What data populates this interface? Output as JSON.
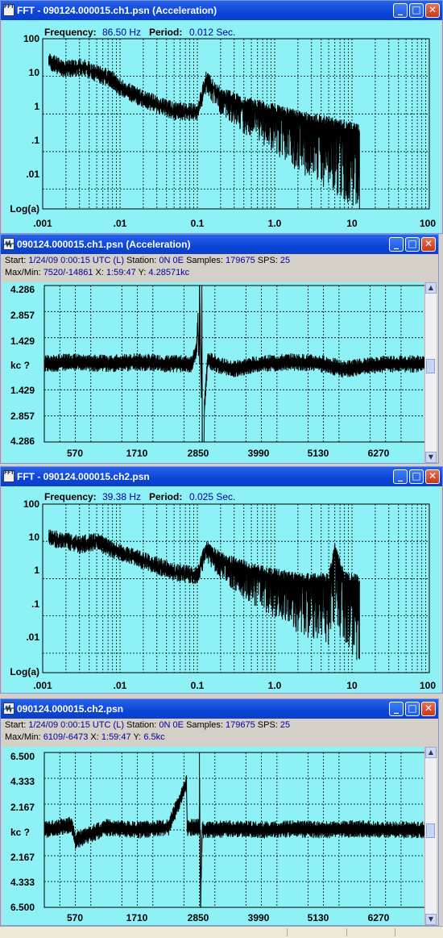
{
  "windows": [
    {
      "id": "fft1",
      "title": "FFT - 090124.000015.ch1.psn (Acceleration)",
      "icon": "fft-icon",
      "icon_text": "FFT",
      "frequency_label": "Frequency:",
      "frequency": "86.50 Hz",
      "period_label": "Period:",
      "period": "0.012 Sec."
    },
    {
      "id": "wave1",
      "title": "090124.000015.ch1.psn (Acceleration)",
      "icon": "waveform-icon",
      "start_label": "Start:",
      "start": "1/24/09  0:00:15 UTC (L)",
      "station_label": "Station:",
      "station": "0N 0E",
      "samples_label": "Samples:",
      "samples": "179675",
      "sps_label": "SPS:",
      "sps": "25",
      "maxmin_label": "Max/Min:",
      "maxmin": "7520/-14861",
      "x_label": "X:",
      "x": "1:59:47",
      "y_label": "Y:",
      "y": "4.28571kc",
      "y_ticks": [
        "4.286",
        "2.857",
        "1.429",
        "kc   ?",
        "1.429",
        "2.857",
        "4.286"
      ]
    },
    {
      "id": "fft2",
      "title": "FFT - 090124.000015.ch2.psn",
      "icon": "fft-icon",
      "icon_text": "FFT",
      "frequency_label": "Frequency:",
      "frequency": "39.38 Hz",
      "period_label": "Period:",
      "period": "0.025 Sec."
    },
    {
      "id": "wave2",
      "title": "090124.000015.ch2.psn",
      "icon": "waveform-icon",
      "start_label": "Start:",
      "start": "1/24/09  0:00:15 UTC (L)",
      "station_label": "Station:",
      "station": "0N 0E",
      "samples_label": "Samples:",
      "samples": "179675",
      "sps_label": "SPS:",
      "sps": "25",
      "maxmin_label": "Max/Min:",
      "maxmin": "6109/-6473",
      "x_label": "X:",
      "x": "1:59:47",
      "y_label": "Y:",
      "y": "6.5kc",
      "y_ticks": [
        "6.500",
        "4.333",
        "2.167",
        "kc   ?",
        "2.167",
        "4.333",
        "6.500"
      ]
    }
  ],
  "buttons": {
    "minimize": "_",
    "maximize": "□",
    "close": "✕"
  },
  "fft_axis": {
    "x_ticks": [
      ".001",
      ".01",
      "0.1",
      "1.0",
      "10",
      "100"
    ],
    "y_ticks": [
      "100",
      "10",
      "1",
      ".1",
      ".01",
      "Log(a)"
    ]
  },
  "wave_axis": {
    "x_ticks": [
      "570",
      "1710",
      "2850",
      "3990",
      "5130",
      "6270"
    ]
  },
  "scroll_icons": {
    "up": "▲",
    "down": "▼"
  },
  "colors": {
    "plot_bg": "#8ef1f6",
    "trace": "#000000",
    "grid": "#000000",
    "title_bar": "#0a45d8",
    "info_value": "#0000a0"
  },
  "chart_data": [
    {
      "type": "line",
      "title": "FFT - 090124.000015.ch1.psn (Acceleration)",
      "xscale": "log",
      "yscale": "log",
      "xlim": [
        0.001,
        100
      ],
      "ylim": [
        0.003,
        100
      ],
      "ylabel": "Log(a)",
      "series": [
        {
          "x": [
            0.0012,
            0.002,
            0.003,
            0.005,
            0.008,
            0.01,
            0.02,
            0.05,
            0.1,
            0.13,
            0.2,
            0.5,
            1,
            2,
            5,
            10,
            12.5
          ],
          "y": [
            25,
            15,
            18,
            12,
            8,
            5,
            2.5,
            1.2,
            1.1,
            8,
            3,
            1.5,
            1.1,
            0.7,
            0.5,
            0.35,
            0.3
          ]
        }
      ]
    },
    {
      "type": "line",
      "title": "090124.000015.ch1.psn (Acceleration)",
      "xlim": [
        0,
        7000
      ],
      "ylim": [
        -4.286,
        4.286
      ],
      "ylabel": "kc",
      "series": [
        {
          "x": [
            0,
            570,
            1140,
            1710,
            2280,
            2700,
            2800,
            2850,
            2900,
            3000,
            3420,
            3990,
            4560,
            5130,
            5500,
            6270,
            7000
          ],
          "y": [
            0,
            0.1,
            0,
            0.1,
            0,
            0,
            0.8,
            4.286,
            -4.286,
            0.2,
            -0.3,
            0,
            0.1,
            0,
            -0.3,
            0,
            0
          ]
        }
      ]
    },
    {
      "type": "line",
      "title": "FFT - 090124.000015.ch2.psn",
      "xscale": "log",
      "yscale": "log",
      "xlim": [
        0.001,
        100
      ],
      "ylim": [
        0.003,
        100
      ],
      "ylabel": "Log(a)",
      "series": [
        {
          "x": [
            0.0012,
            0.002,
            0.003,
            0.005,
            0.008,
            0.01,
            0.02,
            0.05,
            0.1,
            0.13,
            0.2,
            0.5,
            1,
            2,
            5,
            6,
            8,
            12.5
          ],
          "y": [
            12,
            10,
            8,
            10,
            6,
            5,
            3,
            1.5,
            1.2,
            6,
            3,
            1.5,
            1.1,
            0.8,
            0.8,
            5,
            0.9,
            0.7
          ]
        }
      ]
    },
    {
      "type": "line",
      "title": "090124.000015.ch2.psn",
      "xlim": [
        0,
        7000
      ],
      "ylim": [
        -6.5,
        6.5
      ],
      "ylabel": "kc",
      "series": [
        {
          "x": [
            0,
            500,
            570,
            1140,
            1710,
            2280,
            2850,
            2870,
            2900,
            3420,
            3990,
            4560,
            5130,
            5700,
            6270,
            7000
          ],
          "y": [
            0,
            0.4,
            -0.9,
            0.2,
            0,
            0.2,
            6.5,
            -6.5,
            0,
            0.1,
            0,
            0.1,
            0,
            0.1,
            0,
            0
          ]
        }
      ]
    }
  ]
}
